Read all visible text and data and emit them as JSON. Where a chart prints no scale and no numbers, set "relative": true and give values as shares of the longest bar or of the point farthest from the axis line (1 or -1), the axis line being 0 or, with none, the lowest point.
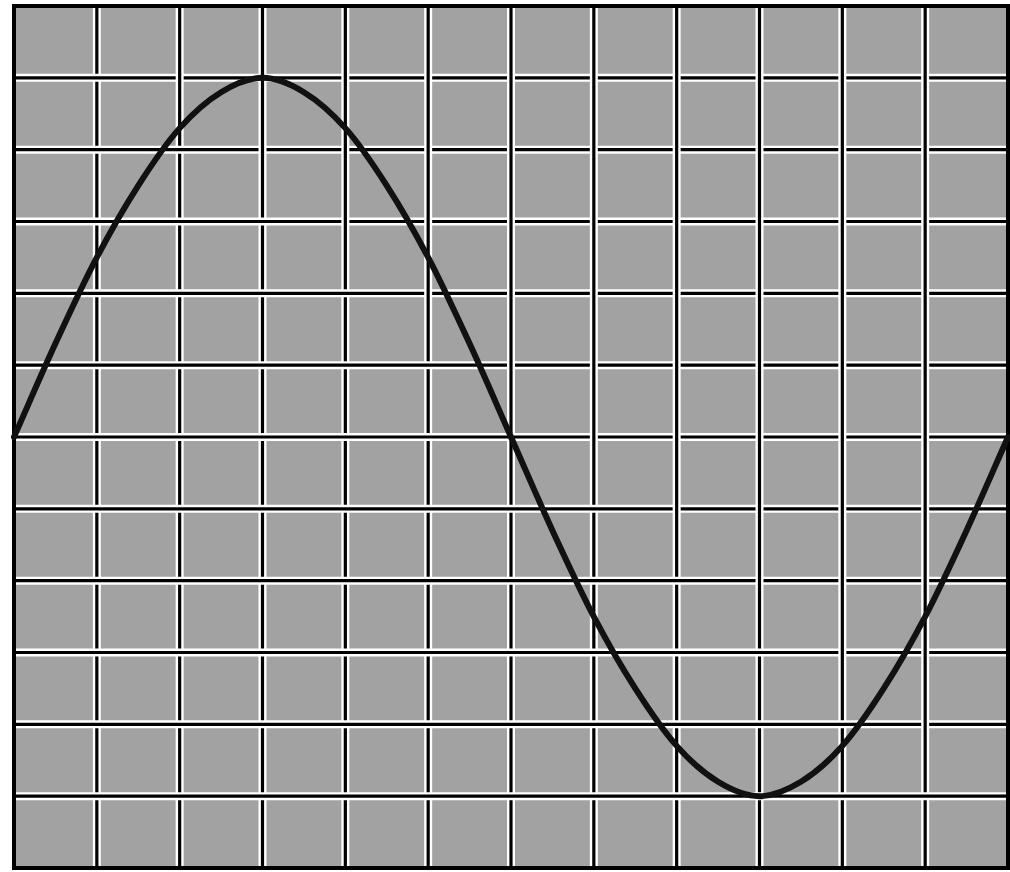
{
  "chart_data": {
    "type": "line",
    "relative": true,
    "categories": [
      null,
      null,
      null,
      null,
      null,
      null,
      null,
      null,
      null,
      null,
      null,
      null,
      null,
      null,
      null,
      null,
      null,
      null,
      null,
      null,
      null,
      null,
      null,
      null,
      null
    ],
    "values": [
      0.5,
      0.63,
      0.75,
      0.85,
      0.93,
      0.98,
      1.0,
      0.98,
      0.93,
      0.85,
      0.75,
      0.63,
      0.5,
      0.37,
      0.25,
      0.15,
      0.07,
      0.02,
      0.0,
      0.02,
      0.07,
      0.15,
      0.25,
      0.37,
      0.5
    ],
    "color": "#111111",
    "grid": true,
    "marker": "none"
  }
}
